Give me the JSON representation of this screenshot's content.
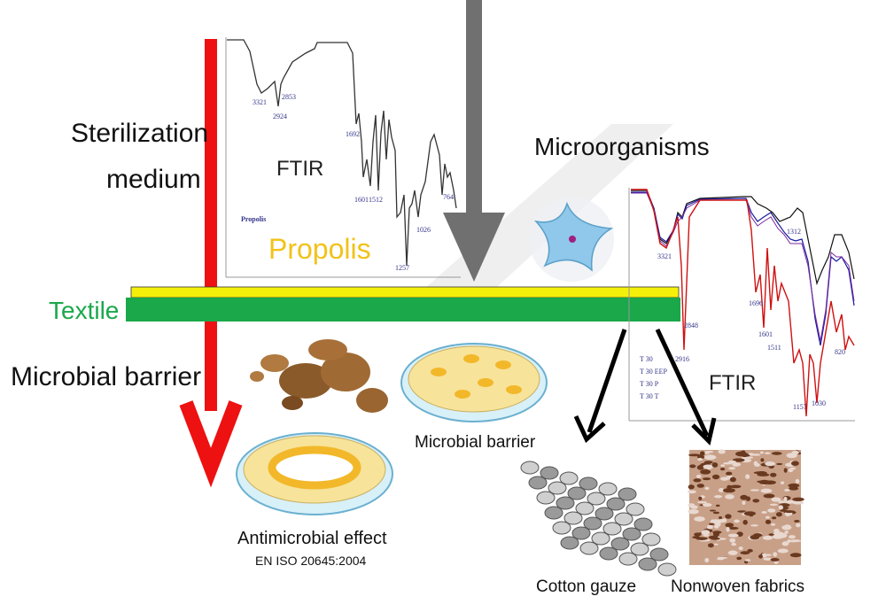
{
  "labels": {
    "sterilization_line1": "Sterilization",
    "sterilization_line2": "medium",
    "textile": "Textile",
    "microbial_barrier_left": "Microbial barrier",
    "microorganisms": "Microorganisms",
    "propolis": "Propolis",
    "ftir_left": "FTIR",
    "ftir_right": "FTIR",
    "microbial_barrier_dish": "Microbial barrier",
    "antimicrobial_effect": "Antimicrobial effect",
    "standard": "EN ISO 20645:2004",
    "cotton_gauze": "Cotton gauze",
    "nonwoven_fabrics": "Nonwoven fabrics"
  },
  "ftir_left": {
    "sample": "Propolis",
    "peaks": [
      "3321",
      "2924",
      "2853",
      "1692",
      "1601",
      "1512",
      "1257",
      "1026",
      "764"
    ]
  },
  "ftir_right": {
    "peaks": [
      "3321",
      "2916",
      "2848",
      "1312",
      "1696",
      "1601",
      "1511",
      "1157",
      "1030",
      "820"
    ],
    "legend": [
      {
        "name": "T 30",
        "color": "#000000"
      },
      {
        "name": "T 30 EEP",
        "color": "#1a1aa0"
      },
      {
        "name": "T 30 P",
        "color": "#d01010"
      },
      {
        "name": "T 30 T",
        "color": "#7a2aa0"
      }
    ]
  },
  "colors": {
    "red_arrow": "#ee1111",
    "gray_arrow": "#707070",
    "textile": "#1aa84a",
    "propolis_layer": "#f5f00a",
    "propolis_text": "#f2c21a"
  }
}
